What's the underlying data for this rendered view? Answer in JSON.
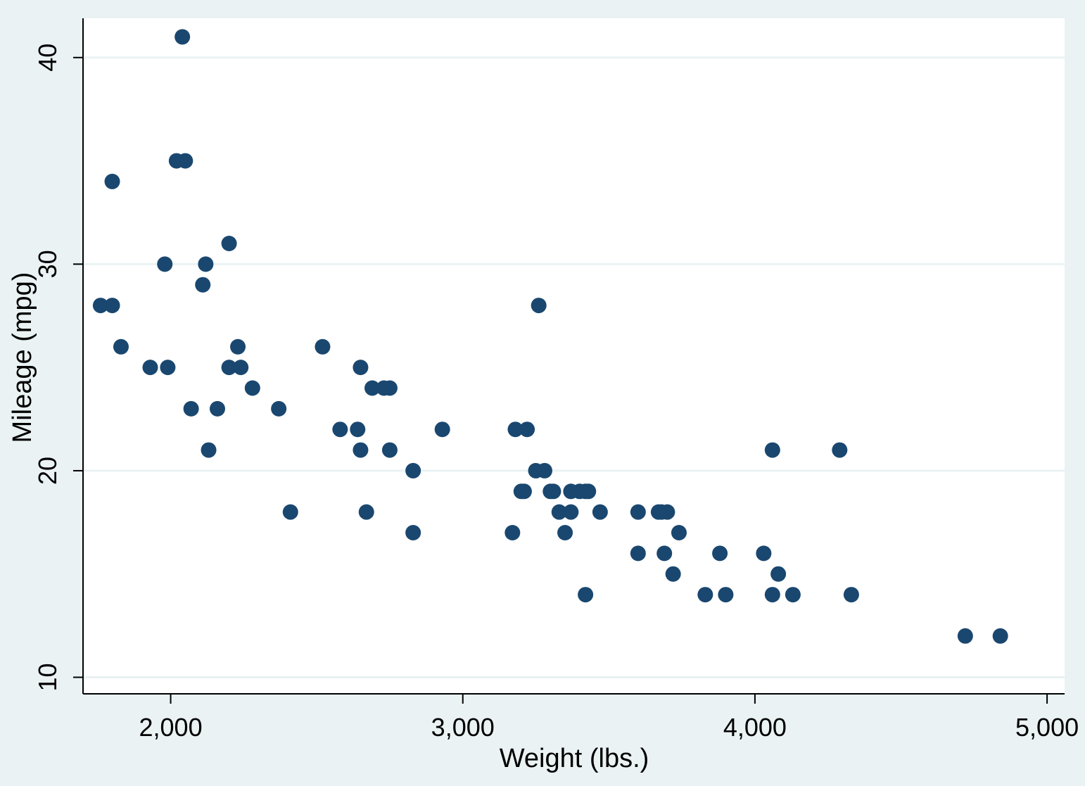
{
  "chart_data": {
    "type": "scatter",
    "title": "",
    "xlabel": "Weight (lbs.)",
    "ylabel": "Mileage (mpg)",
    "xlim": [
      1700,
      5060
    ],
    "ylim": [
      9.2,
      41.9
    ],
    "xticks": [
      2000,
      3000,
      4000,
      5000
    ],
    "xtick_labels": [
      "2,000",
      "3,000",
      "4,000",
      "5,000"
    ],
    "yticks": [
      10,
      20,
      30,
      40
    ],
    "ytick_labels": [
      "10",
      "20",
      "30",
      "40"
    ],
    "grid": "horizontal",
    "legend": "none",
    "colors": {
      "background": "#eaf2f3",
      "plot_area": "#ffffff",
      "grid": "#eaf2f3",
      "marker": "#1a476f"
    },
    "points": [
      {
        "x": 1760,
        "y": 28
      },
      {
        "x": 1800,
        "y": 28
      },
      {
        "x": 1800,
        "y": 34
      },
      {
        "x": 1830,
        "y": 26
      },
      {
        "x": 1930,
        "y": 25
      },
      {
        "x": 1980,
        "y": 30
      },
      {
        "x": 1990,
        "y": 25
      },
      {
        "x": 2020,
        "y": 35
      },
      {
        "x": 2040,
        "y": 41
      },
      {
        "x": 2050,
        "y": 35
      },
      {
        "x": 2070,
        "y": 23
      },
      {
        "x": 2110,
        "y": 29
      },
      {
        "x": 2120,
        "y": 30
      },
      {
        "x": 2130,
        "y": 21
      },
      {
        "x": 2160,
        "y": 23
      },
      {
        "x": 2200,
        "y": 31
      },
      {
        "x": 2200,
        "y": 25
      },
      {
        "x": 2230,
        "y": 26
      },
      {
        "x": 2240,
        "y": 25
      },
      {
        "x": 2280,
        "y": 24
      },
      {
        "x": 2370,
        "y": 23
      },
      {
        "x": 2410,
        "y": 18
      },
      {
        "x": 2520,
        "y": 26
      },
      {
        "x": 2580,
        "y": 22
      },
      {
        "x": 2640,
        "y": 22
      },
      {
        "x": 2650,
        "y": 25
      },
      {
        "x": 2650,
        "y": 21
      },
      {
        "x": 2670,
        "y": 18
      },
      {
        "x": 2690,
        "y": 24
      },
      {
        "x": 2730,
        "y": 24
      },
      {
        "x": 2750,
        "y": 24
      },
      {
        "x": 2750,
        "y": 21
      },
      {
        "x": 2830,
        "y": 20
      },
      {
        "x": 2830,
        "y": 17
      },
      {
        "x": 2930,
        "y": 22
      },
      {
        "x": 3170,
        "y": 17
      },
      {
        "x": 3180,
        "y": 22
      },
      {
        "x": 3200,
        "y": 19
      },
      {
        "x": 3210,
        "y": 19
      },
      {
        "x": 3220,
        "y": 22
      },
      {
        "x": 3250,
        "y": 20
      },
      {
        "x": 3260,
        "y": 28
      },
      {
        "x": 3280,
        "y": 20
      },
      {
        "x": 3300,
        "y": 19
      },
      {
        "x": 3310,
        "y": 19
      },
      {
        "x": 3330,
        "y": 18
      },
      {
        "x": 3350,
        "y": 17
      },
      {
        "x": 3370,
        "y": 19
      },
      {
        "x": 3370,
        "y": 18
      },
      {
        "x": 3400,
        "y": 19
      },
      {
        "x": 3420,
        "y": 19
      },
      {
        "x": 3420,
        "y": 14
      },
      {
        "x": 3430,
        "y": 19
      },
      {
        "x": 3470,
        "y": 18
      },
      {
        "x": 3600,
        "y": 18
      },
      {
        "x": 3600,
        "y": 16
      },
      {
        "x": 3670,
        "y": 18
      },
      {
        "x": 3680,
        "y": 18
      },
      {
        "x": 3690,
        "y": 16
      },
      {
        "x": 3700,
        "y": 18
      },
      {
        "x": 3720,
        "y": 15
      },
      {
        "x": 3740,
        "y": 17
      },
      {
        "x": 3830,
        "y": 14
      },
      {
        "x": 3880,
        "y": 16
      },
      {
        "x": 3900,
        "y": 14
      },
      {
        "x": 4030,
        "y": 16
      },
      {
        "x": 4060,
        "y": 21
      },
      {
        "x": 4060,
        "y": 14
      },
      {
        "x": 4080,
        "y": 15
      },
      {
        "x": 4130,
        "y": 14
      },
      {
        "x": 4290,
        "y": 21
      },
      {
        "x": 4330,
        "y": 14
      },
      {
        "x": 4720,
        "y": 12
      },
      {
        "x": 4840,
        "y": 12
      }
    ]
  }
}
